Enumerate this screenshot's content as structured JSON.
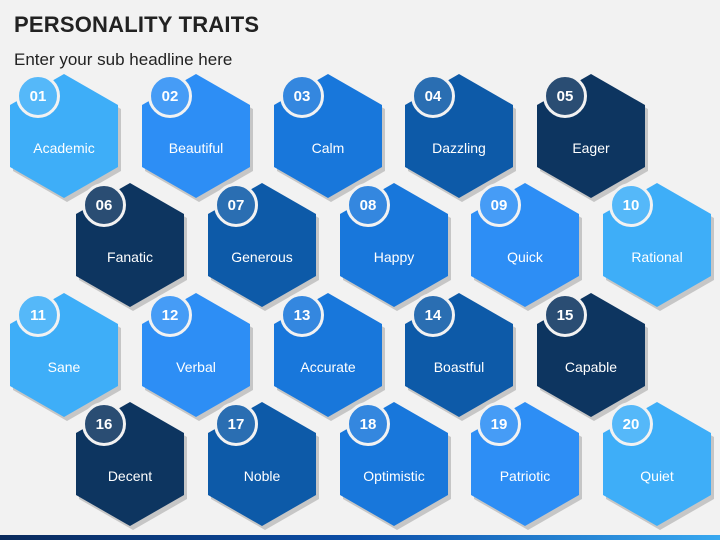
{
  "header": {
    "title": "PERSONALITY TRAITS",
    "subtitle": "Enter your sub headline here"
  },
  "colors": {
    "navy": "#0d3560",
    "dark_blue": "#0d5aa8",
    "medium_blue": "#1877db",
    "bright_blue": "#2d8ef5",
    "light_blue": "#3eaef8"
  },
  "traits": [
    {
      "number": "01",
      "label": "Academic",
      "tone": "light_blue"
    },
    {
      "number": "02",
      "label": "Beautiful",
      "tone": "bright_blue"
    },
    {
      "number": "03",
      "label": "Calm",
      "tone": "medium_blue"
    },
    {
      "number": "04",
      "label": "Dazzling",
      "tone": "dark_blue"
    },
    {
      "number": "05",
      "label": "Eager",
      "tone": "navy"
    },
    {
      "number": "06",
      "label": "Fanatic",
      "tone": "navy"
    },
    {
      "number": "07",
      "label": "Generous",
      "tone": "dark_blue"
    },
    {
      "number": "08",
      "label": "Happy",
      "tone": "medium_blue"
    },
    {
      "number": "09",
      "label": "Quick",
      "tone": "bright_blue"
    },
    {
      "number": "10",
      "label": "Rational",
      "tone": "light_blue"
    },
    {
      "number": "11",
      "label": "Sane",
      "tone": "light_blue"
    },
    {
      "number": "12",
      "label": "Verbal",
      "tone": "bright_blue"
    },
    {
      "number": "13",
      "label": "Accurate",
      "tone": "medium_blue"
    },
    {
      "number": "14",
      "label": "Boastful",
      "tone": "dark_blue"
    },
    {
      "number": "15",
      "label": "Capable",
      "tone": "navy"
    },
    {
      "number": "16",
      "label": "Decent",
      "tone": "navy"
    },
    {
      "number": "17",
      "label": "Noble",
      "tone": "dark_blue"
    },
    {
      "number": "18",
      "label": "Optimistic",
      "tone": "medium_blue"
    },
    {
      "number": "19",
      "label": "Patriotic",
      "tone": "bright_blue"
    },
    {
      "number": "20",
      "label": "Quiet",
      "tone": "light_blue"
    }
  ]
}
